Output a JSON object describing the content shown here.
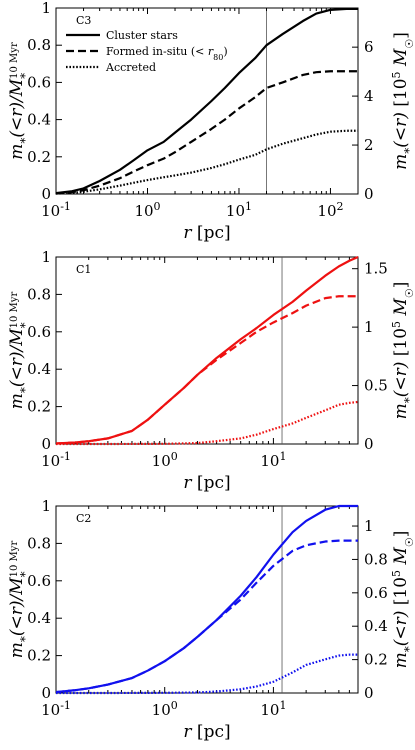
{
  "chart_data": [
    {
      "type": "line",
      "panel_label": "C3",
      "xlabel": "r [pc]",
      "ylabel_left": "m*(<r)/M*^10 Myr",
      "ylabel_right": "m*(<r) [10^5 M☉]",
      "xscale": "log",
      "xlim": [
        0.1,
        200
      ],
      "ylim": [
        0,
        1
      ],
      "x_ticks": [
        "10^-1",
        "10^0",
        "10^1",
        "10^2"
      ],
      "y_ticks": [
        "0",
        "0.2",
        "0.4",
        "0.6",
        "0.8",
        "1"
      ],
      "right_ylim": [
        0,
        7.6
      ],
      "right_ticks": [
        "0",
        "2",
        "4",
        "6"
      ],
      "vline_x": 20,
      "color": "#000000",
      "legend": {
        "position": "top-left",
        "entries": [
          "Cluster stars",
          "Formed in-situ (< r80)",
          "Accreted"
        ]
      },
      "series": [
        {
          "name": "Cluster stars",
          "style": "solid",
          "x": [
            0.1,
            0.15,
            0.2,
            0.3,
            0.5,
            0.7,
            1,
            1.5,
            2,
            3,
            5,
            7,
            10,
            15,
            20,
            30,
            50,
            70,
            100,
            150,
            200
          ],
          "y": [
            0.005,
            0.015,
            0.03,
            0.07,
            0.13,
            0.18,
            0.235,
            0.28,
            0.33,
            0.4,
            0.5,
            0.57,
            0.65,
            0.73,
            0.8,
            0.86,
            0.93,
            0.97,
            0.99,
            0.995,
            0.995
          ]
        },
        {
          "name": "Formed in-situ (< r80)",
          "style": "dashed",
          "x": [
            0.1,
            0.15,
            0.2,
            0.3,
            0.5,
            0.7,
            1,
            1.5,
            2,
            3,
            5,
            7,
            10,
            15,
            20,
            30,
            50,
            70,
            100,
            150,
            200
          ],
          "y": [
            0.003,
            0.01,
            0.02,
            0.045,
            0.085,
            0.12,
            0.155,
            0.19,
            0.225,
            0.28,
            0.35,
            0.4,
            0.46,
            0.52,
            0.57,
            0.6,
            0.64,
            0.655,
            0.66,
            0.66,
            0.66
          ]
        },
        {
          "name": "Accreted",
          "style": "dotted",
          "x": [
            0.1,
            0.15,
            0.2,
            0.3,
            0.5,
            0.7,
            1,
            1.5,
            2,
            3,
            5,
            7,
            10,
            15,
            20,
            30,
            50,
            70,
            100,
            150,
            200
          ],
          "y": [
            0.002,
            0.006,
            0.012,
            0.025,
            0.045,
            0.06,
            0.075,
            0.09,
            0.1,
            0.115,
            0.14,
            0.16,
            0.185,
            0.21,
            0.24,
            0.27,
            0.3,
            0.32,
            0.335,
            0.34,
            0.34
          ]
        }
      ]
    },
    {
      "type": "line",
      "panel_label": "C1",
      "xlabel": "r [pc]",
      "ylabel_left": "m*(<r)/M*^10 Myr",
      "ylabel_right": "m*(<r) [10^5 M☉]",
      "xscale": "log",
      "xlim": [
        0.1,
        60
      ],
      "ylim": [
        0,
        1
      ],
      "x_ticks": [
        "10^-1",
        "10^0",
        "10^1"
      ],
      "y_ticks": [
        "0",
        "0.2",
        "0.4",
        "0.6",
        "0.8",
        "1"
      ],
      "right_ylim": [
        0,
        1.6
      ],
      "right_ticks": [
        "0",
        "0.5",
        "1",
        "1.5"
      ],
      "vline_x": 12,
      "color": "#ee1111",
      "series": [
        {
          "name": "Cluster stars",
          "style": "solid",
          "x": [
            0.1,
            0.15,
            0.2,
            0.3,
            0.5,
            0.7,
            1,
            1.5,
            2,
            3,
            5,
            7,
            10,
            15,
            20,
            30,
            40,
            50,
            60
          ],
          "y": [
            0.003,
            0.008,
            0.015,
            0.03,
            0.07,
            0.13,
            0.21,
            0.3,
            0.37,
            0.46,
            0.56,
            0.62,
            0.69,
            0.76,
            0.82,
            0.9,
            0.95,
            0.98,
            1.0
          ]
        },
        {
          "name": "Formed in-situ (< r80)",
          "style": "dashed",
          "x": [
            0.1,
            0.15,
            0.2,
            0.3,
            0.5,
            0.7,
            1,
            1.5,
            2,
            3,
            5,
            7,
            10,
            15,
            20,
            30,
            40,
            50,
            60
          ],
          "y": [
            0.003,
            0.008,
            0.015,
            0.03,
            0.07,
            0.13,
            0.21,
            0.3,
            0.37,
            0.45,
            0.54,
            0.6,
            0.65,
            0.7,
            0.74,
            0.78,
            0.79,
            0.79,
            0.79
          ]
        },
        {
          "name": "Accreted",
          "style": "dotted",
          "x": [
            0.1,
            0.3,
            1,
            2,
            3,
            5,
            7,
            10,
            15,
            20,
            30,
            40,
            50,
            60
          ],
          "y": [
            0,
            0,
            0.001,
            0.005,
            0.015,
            0.03,
            0.05,
            0.08,
            0.11,
            0.14,
            0.18,
            0.21,
            0.22,
            0.225
          ]
        }
      ]
    },
    {
      "type": "line",
      "panel_label": "C2",
      "xlabel": "r [pc]",
      "ylabel_left": "m*(<r)/M*^10 Myr",
      "ylabel_right": "m*(<r) [10^5 M☉]",
      "xscale": "log",
      "xlim": [
        0.1,
        60
      ],
      "ylim": [
        0,
        1
      ],
      "x_ticks": [
        "10^-1",
        "10^0",
        "10^1"
      ],
      "y_ticks": [
        "0",
        "0.2",
        "0.4",
        "0.6",
        "0.8",
        "1"
      ],
      "right_ylim": [
        0,
        1.12
      ],
      "right_ticks": [
        "0",
        "0.2",
        "0.4",
        "0.6",
        "0.8",
        "1"
      ],
      "vline_x": 12,
      "color": "#1111ee",
      "series": [
        {
          "name": "Cluster stars",
          "style": "solid",
          "x": [
            0.1,
            0.15,
            0.2,
            0.3,
            0.5,
            0.7,
            1,
            1.5,
            2,
            3,
            5,
            7,
            10,
            15,
            20,
            30,
            40,
            50,
            60
          ],
          "y": [
            0.005,
            0.015,
            0.025,
            0.045,
            0.08,
            0.12,
            0.17,
            0.24,
            0.3,
            0.39,
            0.52,
            0.62,
            0.74,
            0.86,
            0.92,
            0.98,
            1.0,
            1.0,
            1.0
          ]
        },
        {
          "name": "Formed in-situ (< r80)",
          "style": "dashed",
          "x": [
            0.1,
            0.15,
            0.2,
            0.3,
            0.5,
            0.7,
            1,
            1.5,
            2,
            3,
            5,
            7,
            10,
            15,
            20,
            30,
            40,
            50,
            60
          ],
          "y": [
            0.005,
            0.015,
            0.025,
            0.045,
            0.08,
            0.12,
            0.17,
            0.24,
            0.3,
            0.39,
            0.5,
            0.59,
            0.68,
            0.76,
            0.79,
            0.81,
            0.815,
            0.815,
            0.815
          ]
        },
        {
          "name": "Accreted",
          "style": "dotted",
          "x": [
            0.1,
            0.3,
            1,
            2,
            3,
            5,
            7,
            10,
            15,
            20,
            30,
            40,
            50,
            60
          ],
          "y": [
            0,
            0,
            0.001,
            0.003,
            0.008,
            0.02,
            0.035,
            0.06,
            0.11,
            0.15,
            0.18,
            0.2,
            0.205,
            0.205
          ]
        }
      ]
    }
  ]
}
